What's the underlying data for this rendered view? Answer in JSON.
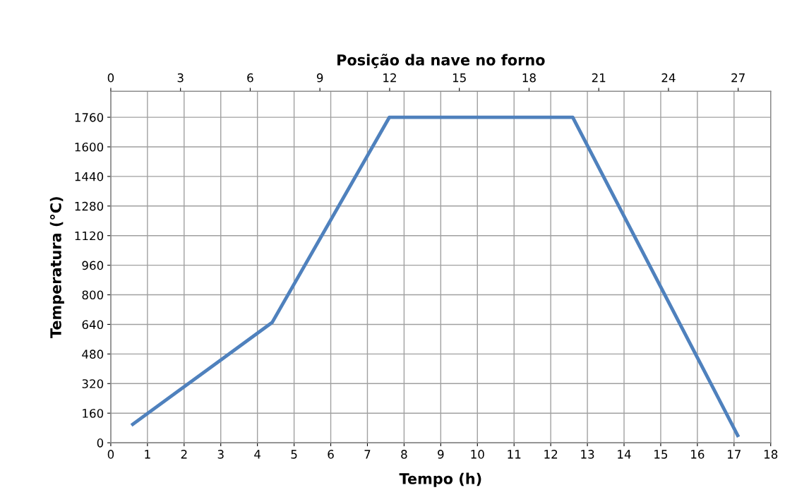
{
  "chart_data": {
    "type": "line",
    "title": "Posição da nave no forno",
    "xlabel": "Tempo (h)",
    "ylabel": "Temperatura (°C)",
    "x": [
      0.6,
      4.4,
      7.6,
      12.6,
      17.1
    ],
    "series": [
      {
        "color": "#4f81bd",
        "values": [
          100,
          650,
          1760,
          1760,
          40
        ]
      }
    ],
    "xlim": [
      0,
      18
    ],
    "xticks": [
      0,
      1,
      2,
      3,
      4,
      5,
      6,
      7,
      8,
      9,
      10,
      11,
      12,
      13,
      14,
      15,
      16,
      17,
      18
    ],
    "ylim": [
      0,
      1900
    ],
    "yticks": [
      0,
      160,
      320,
      480,
      640,
      800,
      960,
      1120,
      1280,
      1440,
      1600,
      1760
    ],
    "x2lim": [
      0,
      28.4
    ],
    "x2ticks": [
      0,
      3,
      6,
      9,
      12,
      15,
      18,
      21,
      24,
      27
    ],
    "grid": true,
    "marker": "none",
    "line_style": "solid"
  }
}
